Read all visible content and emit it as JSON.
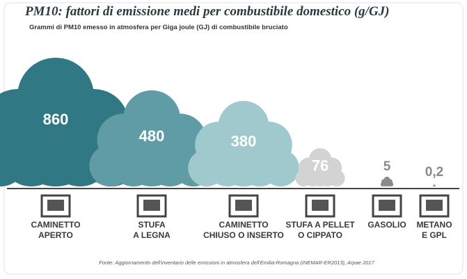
{
  "chart_data": {
    "type": "cloud",
    "title": "PM10: fattori di emissione medi per combustibile domestico (g/GJ)",
    "subtitle": "Grammi di PM10 emesso in atmosfera per Giga joule (GJ) di combustibile bruciato",
    "source": "Fonte: Aggiornamento dell'inventario delle emissioni in atmosfera dell'Emilia-Romagna (INEMAR-ER2013), Arpae 2017",
    "categories": [
      "CAMINETTO\nAPERTO",
      "STUFA\nA LEGNA",
      "CAMINETTO\nCHIUSO O INSERTO",
      "STUFA A PELLET\nO CIPPATO",
      "GASOLIO",
      "METANO\nE GPL"
    ],
    "values": [
      860,
      480,
      380,
      76,
      5,
      0.2
    ],
    "value_labels": [
      "860",
      "480",
      "380",
      "76",
      "5",
      "0,2"
    ],
    "colors": [
      "#2f7884",
      "#5f9ca6",
      "#9fc9cd",
      "#d3d3d3",
      "#8a8a8a",
      "#8a8a8a"
    ]
  }
}
